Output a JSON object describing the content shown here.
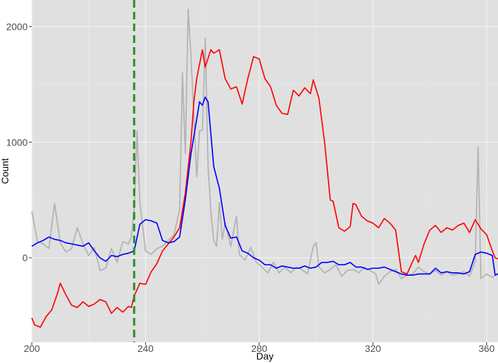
{
  "chart_data": {
    "type": "line",
    "title": "",
    "xlabel": "Day",
    "ylabel": "Count",
    "xlim": [
      200,
      364
    ],
    "ylim": [
      -730,
      2230
    ],
    "x_ticks": [
      200,
      240,
      280,
      320,
      360
    ],
    "y_ticks": [
      0,
      1000,
      2000
    ],
    "grid": true,
    "legend": "none",
    "vline": {
      "x": 236,
      "color": "#228b22"
    },
    "series": [
      {
        "color": "#b3b3b3",
        "points": [
          [
            200,
            400
          ],
          [
            202,
            140
          ],
          [
            204,
            120
          ],
          [
            206,
            80
          ],
          [
            208,
            470
          ],
          [
            210,
            130
          ],
          [
            212,
            50
          ],
          [
            214,
            80
          ],
          [
            216,
            260
          ],
          [
            218,
            120
          ],
          [
            220,
            20
          ],
          [
            222,
            90
          ],
          [
            224,
            -110
          ],
          [
            226,
            -90
          ],
          [
            228,
            80
          ],
          [
            230,
            -40
          ],
          [
            232,
            140
          ],
          [
            234,
            120
          ],
          [
            235,
            180
          ],
          [
            236,
            420
          ],
          [
            237,
            1100
          ],
          [
            238,
            480
          ],
          [
            240,
            60
          ],
          [
            242,
            30
          ],
          [
            244,
            80
          ],
          [
            246,
            100
          ],
          [
            248,
            150
          ],
          [
            250,
            200
          ],
          [
            252,
            420
          ],
          [
            253,
            1600
          ],
          [
            254,
            900
          ],
          [
            255,
            2150
          ],
          [
            256,
            1750
          ],
          [
            258,
            700
          ],
          [
            259,
            1100
          ],
          [
            260,
            1100
          ],
          [
            261,
            1900
          ],
          [
            262,
            800
          ],
          [
            263,
            400
          ],
          [
            264,
            150
          ],
          [
            265,
            100
          ],
          [
            266,
            480
          ],
          [
            267,
            160
          ],
          [
            268,
            300
          ],
          [
            270,
            100
          ],
          [
            272,
            360
          ],
          [
            273,
            30
          ],
          [
            275,
            -20
          ],
          [
            277,
            90
          ],
          [
            279,
            -40
          ],
          [
            281,
            -80
          ],
          [
            283,
            -130
          ],
          [
            285,
            -40
          ],
          [
            287,
            -130
          ],
          [
            289,
            -80
          ],
          [
            291,
            -130
          ],
          [
            293,
            -80
          ],
          [
            295,
            -100
          ],
          [
            297,
            -140
          ],
          [
            299,
            100
          ],
          [
            300,
            130
          ],
          [
            301,
            -80
          ],
          [
            303,
            -130
          ],
          [
            305,
            -100
          ],
          [
            307,
            -60
          ],
          [
            309,
            -160
          ],
          [
            311,
            -110
          ],
          [
            313,
            -100
          ],
          [
            315,
            -130
          ],
          [
            317,
            -80
          ],
          [
            319,
            -110
          ],
          [
            321,
            -140
          ],
          [
            322,
            -230
          ],
          [
            324,
            -160
          ],
          [
            326,
            -120
          ],
          [
            328,
            -100
          ],
          [
            330,
            -180
          ],
          [
            332,
            -150
          ],
          [
            334,
            -140
          ],
          [
            336,
            -80
          ],
          [
            338,
            -120
          ],
          [
            340,
            -140
          ],
          [
            342,
            -110
          ],
          [
            344,
            -150
          ],
          [
            346,
            -120
          ],
          [
            348,
            -150
          ],
          [
            350,
            -140
          ],
          [
            352,
            -120
          ],
          [
            354,
            -160
          ],
          [
            356,
            -30
          ],
          [
            357,
            960
          ],
          [
            358,
            -180
          ],
          [
            360,
            -140
          ],
          [
            362,
            -170
          ],
          [
            364,
            -130
          ]
        ]
      },
      {
        "color": "#ff0000",
        "points": [
          [
            200,
            -520
          ],
          [
            201,
            -580
          ],
          [
            203,
            -600
          ],
          [
            205,
            -510
          ],
          [
            207,
            -450
          ],
          [
            209,
            -310
          ],
          [
            210,
            -220
          ],
          [
            212,
            -320
          ],
          [
            214,
            -410
          ],
          [
            216,
            -430
          ],
          [
            218,
            -380
          ],
          [
            220,
            -420
          ],
          [
            222,
            -400
          ],
          [
            224,
            -360
          ],
          [
            226,
            -380
          ],
          [
            228,
            -480
          ],
          [
            230,
            -430
          ],
          [
            232,
            -470
          ],
          [
            234,
            -420
          ],
          [
            235,
            -430
          ],
          [
            236,
            -330
          ],
          [
            238,
            -220
          ],
          [
            240,
            -230
          ],
          [
            242,
            -120
          ],
          [
            244,
            -50
          ],
          [
            246,
            60
          ],
          [
            248,
            120
          ],
          [
            250,
            180
          ],
          [
            252,
            260
          ],
          [
            254,
            560
          ],
          [
            256,
            1000
          ],
          [
            257,
            1350
          ],
          [
            258,
            1550
          ],
          [
            260,
            1800
          ],
          [
            261,
            1650
          ],
          [
            263,
            1800
          ],
          [
            264,
            1770
          ],
          [
            266,
            1800
          ],
          [
            268,
            1550
          ],
          [
            270,
            1460
          ],
          [
            272,
            1480
          ],
          [
            274,
            1330
          ],
          [
            276,
            1550
          ],
          [
            278,
            1740
          ],
          [
            280,
            1720
          ],
          [
            282,
            1550
          ],
          [
            284,
            1480
          ],
          [
            286,
            1320
          ],
          [
            288,
            1250
          ],
          [
            290,
            1240
          ],
          [
            292,
            1450
          ],
          [
            294,
            1400
          ],
          [
            296,
            1470
          ],
          [
            298,
            1420
          ],
          [
            299,
            1540
          ],
          [
            301,
            1380
          ],
          [
            303,
            1000
          ],
          [
            305,
            500
          ],
          [
            306,
            490
          ],
          [
            308,
            260
          ],
          [
            310,
            230
          ],
          [
            312,
            270
          ],
          [
            313,
            470
          ],
          [
            314,
            460
          ],
          [
            316,
            360
          ],
          [
            318,
            320
          ],
          [
            320,
            300
          ],
          [
            322,
            260
          ],
          [
            324,
            340
          ],
          [
            326,
            300
          ],
          [
            328,
            240
          ],
          [
            330,
            -120
          ],
          [
            332,
            -140
          ],
          [
            334,
            -30
          ],
          [
            335,
            20
          ],
          [
            336,
            -40
          ],
          [
            338,
            120
          ],
          [
            340,
            240
          ],
          [
            342,
            280
          ],
          [
            344,
            220
          ],
          [
            346,
            260
          ],
          [
            348,
            240
          ],
          [
            350,
            280
          ],
          [
            352,
            300
          ],
          [
            354,
            220
          ],
          [
            356,
            330
          ],
          [
            358,
            250
          ],
          [
            360,
            200
          ],
          [
            362,
            60
          ],
          [
            363,
            0
          ],
          [
            364,
            -10
          ]
        ]
      },
      {
        "color": "#0000ff",
        "points": [
          [
            200,
            100
          ],
          [
            202,
            130
          ],
          [
            204,
            150
          ],
          [
            206,
            180
          ],
          [
            208,
            160
          ],
          [
            210,
            150
          ],
          [
            212,
            130
          ],
          [
            214,
            120
          ],
          [
            216,
            110
          ],
          [
            218,
            100
          ],
          [
            220,
            130
          ],
          [
            222,
            60
          ],
          [
            224,
            0
          ],
          [
            226,
            -30
          ],
          [
            228,
            20
          ],
          [
            230,
            10
          ],
          [
            232,
            30
          ],
          [
            234,
            40
          ],
          [
            236,
            60
          ],
          [
            238,
            290
          ],
          [
            240,
            330
          ],
          [
            242,
            320
          ],
          [
            244,
            300
          ],
          [
            246,
            150
          ],
          [
            248,
            130
          ],
          [
            250,
            140
          ],
          [
            252,
            180
          ],
          [
            254,
            500
          ],
          [
            256,
            900
          ],
          [
            258,
            1200
          ],
          [
            259,
            1350
          ],
          [
            260,
            1320
          ],
          [
            261,
            1390
          ],
          [
            262,
            1350
          ],
          [
            264,
            790
          ],
          [
            266,
            600
          ],
          [
            268,
            280
          ],
          [
            270,
            170
          ],
          [
            272,
            180
          ],
          [
            274,
            60
          ],
          [
            276,
            40
          ],
          [
            278,
            0
          ],
          [
            280,
            -20
          ],
          [
            282,
            -60
          ],
          [
            284,
            -60
          ],
          [
            286,
            -90
          ],
          [
            288,
            -70
          ],
          [
            290,
            -80
          ],
          [
            292,
            -90
          ],
          [
            294,
            -90
          ],
          [
            296,
            -70
          ],
          [
            298,
            -90
          ],
          [
            300,
            -80
          ],
          [
            302,
            -40
          ],
          [
            304,
            -40
          ],
          [
            306,
            -30
          ],
          [
            308,
            -60
          ],
          [
            310,
            -60
          ],
          [
            312,
            -40
          ],
          [
            314,
            -80
          ],
          [
            316,
            -80
          ],
          [
            318,
            -100
          ],
          [
            320,
            -90
          ],
          [
            322,
            -90
          ],
          [
            324,
            -80
          ],
          [
            326,
            -100
          ],
          [
            328,
            -120
          ],
          [
            330,
            -140
          ],
          [
            332,
            -150
          ],
          [
            334,
            -150
          ],
          [
            336,
            -140
          ],
          [
            338,
            -140
          ],
          [
            340,
            -140
          ],
          [
            342,
            -90
          ],
          [
            344,
            -130
          ],
          [
            346,
            -120
          ],
          [
            348,
            -130
          ],
          [
            350,
            -130
          ],
          [
            352,
            -140
          ],
          [
            354,
            -120
          ],
          [
            356,
            30
          ],
          [
            358,
            50
          ],
          [
            360,
            40
          ],
          [
            362,
            20
          ],
          [
            363,
            -150
          ],
          [
            364,
            -140
          ]
        ]
      }
    ]
  }
}
